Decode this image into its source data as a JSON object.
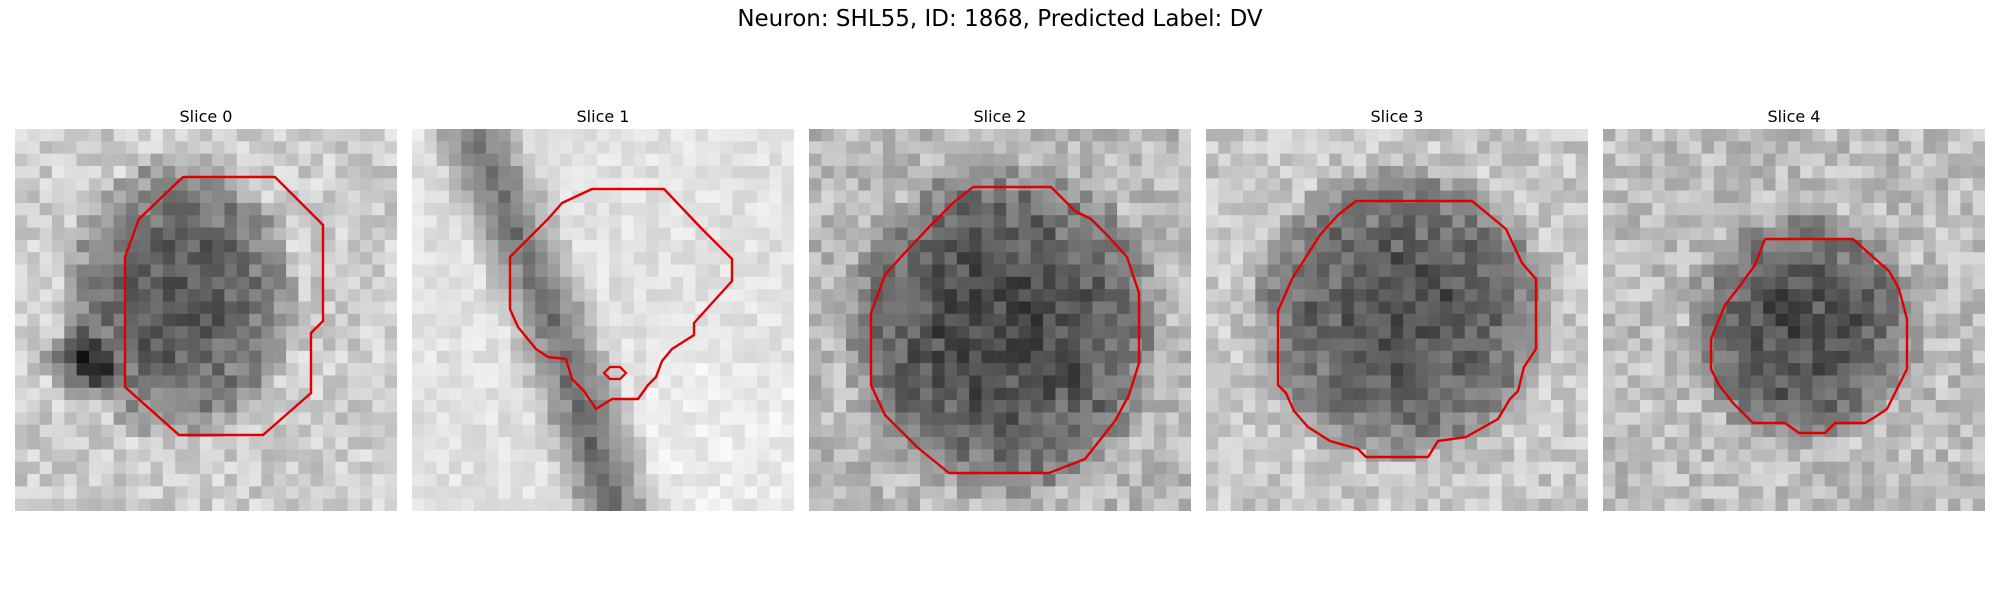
{
  "figure": {
    "title": "Neuron: SHL55, ID: 1868, Predicted Label: DV"
  },
  "panels": [
    {
      "title": "Slice 0"
    },
    {
      "title": "Slice 1"
    },
    {
      "title": "Slice 2"
    },
    {
      "title": "Slice 3"
    },
    {
      "title": "Slice 4"
    }
  ],
  "colors": {
    "contour": "#e00000",
    "background": "#ffffff"
  },
  "colormap": "grayscale"
}
